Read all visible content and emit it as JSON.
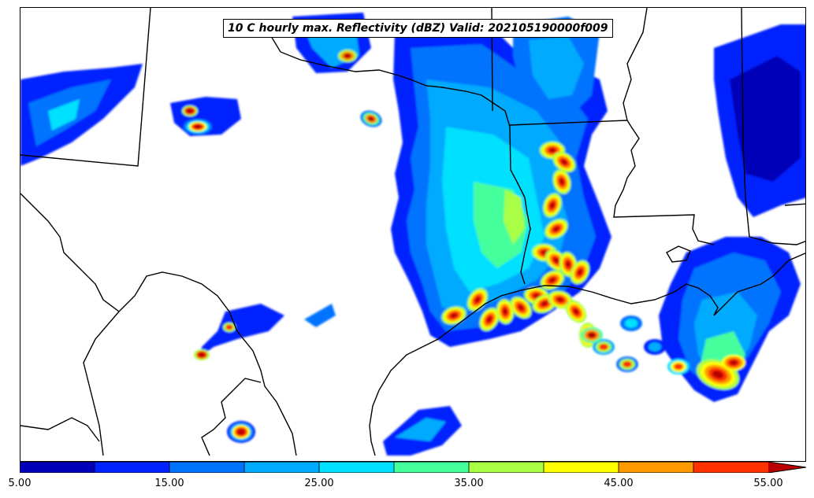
{
  "title": "10 C hourly max. Reflectivity (dBZ) Valid: 202105190000f009",
  "colorbar": {
    "min": 5,
    "max": 55,
    "step": 5,
    "extend": "max",
    "colors": [
      "#0000b8",
      "#0022ff",
      "#0073ff",
      "#00aaff",
      "#00e0ff",
      "#44ff9c",
      "#a8ff44",
      "#ffff00",
      "#ff9900",
      "#ff3300",
      "#b80000"
    ],
    "tick_labels": [
      "5.00",
      "15.00",
      "25.00",
      "35.00",
      "45.00",
      "55.00"
    ]
  },
  "map": {
    "region": "Texas / Louisiana / Gulf Coast",
    "boundary_color": "#000000",
    "background": "#ffffff"
  }
}
